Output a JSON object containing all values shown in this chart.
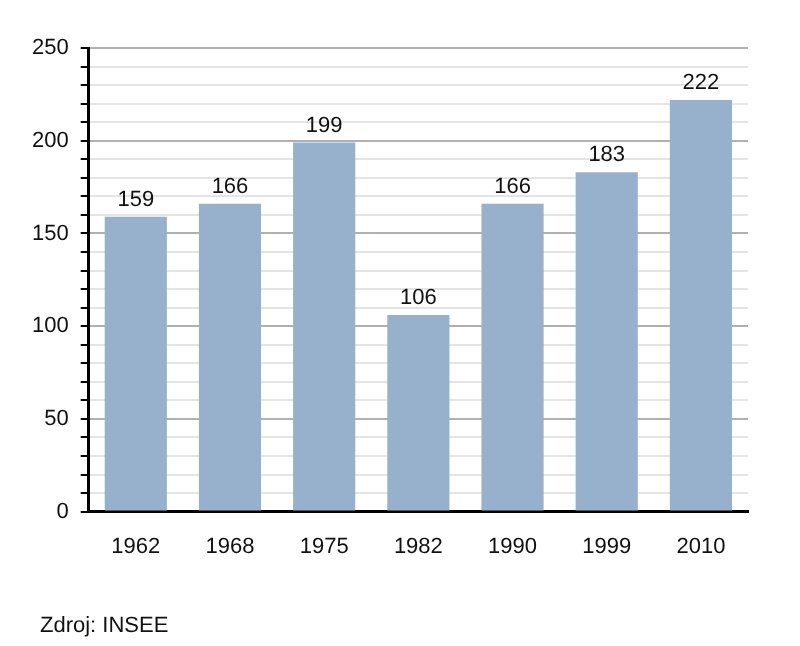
{
  "chart_data": {
    "type": "bar",
    "categories": [
      "1962",
      "1968",
      "1975",
      "1982",
      "1990",
      "1999",
      "2010"
    ],
    "values": [
      159,
      166,
      199,
      106,
      166,
      183,
      222
    ],
    "color": "#97b1cc",
    "data_labels": true,
    "grid": "y",
    "ylim": [
      0,
      250
    ],
    "yticks": [
      0,
      {
        "value": 10,
        "label": null
      },
      {
        "value": 20,
        "label": null
      },
      {
        "value": 30,
        "label": null
      },
      {
        "value": 40,
        "label": null
      },
      50,
      {
        "value": 60,
        "label": null
      },
      {
        "value": 70,
        "label": null
      },
      {
        "value": 80,
        "label": null
      },
      {
        "value": 90,
        "label": null
      },
      100,
      {
        "value": 110,
        "label": null
      },
      {
        "value": 120,
        "label": null
      },
      {
        "value": 130,
        "label": null
      },
      {
        "value": 140,
        "label": null
      },
      150,
      {
        "value": 160,
        "label": null
      },
      {
        "value": 170,
        "label": null
      },
      {
        "value": 180,
        "label": null
      },
      {
        "value": 190,
        "label": null
      },
      200,
      {
        "value": 210,
        "label": null
      },
      {
        "value": 220,
        "label": null
      },
      {
        "value": 230,
        "label": null
      },
      {
        "value": 240,
        "label": null
      },
      250
    ],
    "annotations": [
      "Zdroj: INSEE"
    ]
  }
}
